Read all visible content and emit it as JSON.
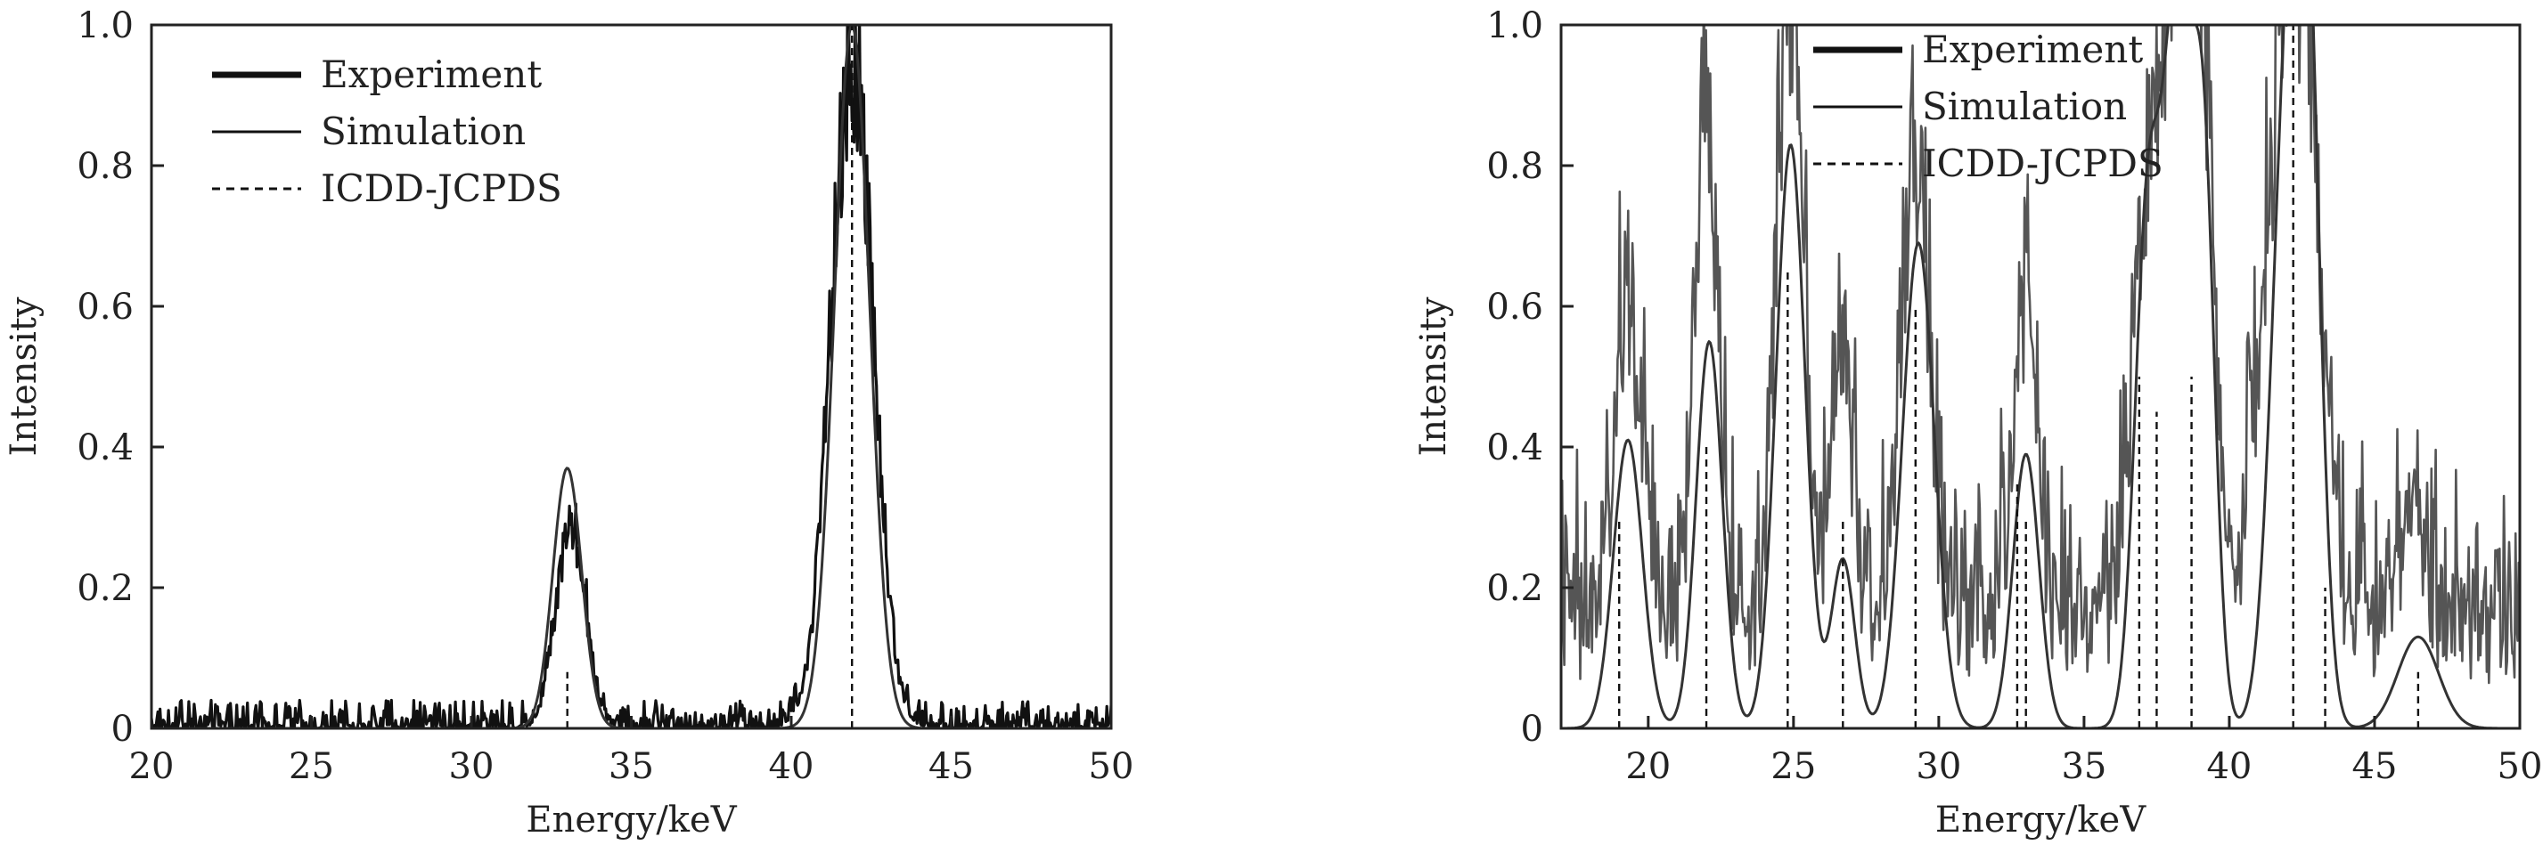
{
  "chart_data": [
    {
      "type": "line",
      "title": "",
      "xlabel": "Energy/keV",
      "ylabel": "Intensity",
      "xlim": [
        20,
        50
      ],
      "ylim": [
        0,
        1.0
      ],
      "x_ticks": [
        "20",
        "25",
        "30",
        "35",
        "40",
        "45",
        "50"
      ],
      "y_ticks": [
        "0",
        "0.2",
        "0.4",
        "0.6",
        "0.8",
        "1.0"
      ],
      "grid": false,
      "legend": {
        "position": "top-left",
        "entries": [
          "Experiment",
          "Simulation",
          "ICDD-JCPDS"
        ]
      },
      "series": [
        {
          "name": "Experiment",
          "style": "noisy",
          "color": "#111111",
          "peaks": [
            {
              "center": 33.1,
              "height": 0.3,
              "width": 0.45
            },
            {
              "center": 41.9,
              "height": 0.98,
              "width": 0.65
            }
          ],
          "noise": 0.04
        },
        {
          "name": "Simulation",
          "style": "smooth",
          "color": "#333333",
          "peaks": [
            {
              "center": 33.0,
              "height": 0.37,
              "width": 0.45
            },
            {
              "center": 41.9,
              "height": 1.0,
              "width": 0.55
            }
          ]
        },
        {
          "name": "ICDD-JCPDS",
          "style": "sticks",
          "color": "#111111",
          "x": [
            33.0,
            41.9
          ],
          "values": [
            0.08,
            1.0
          ]
        }
      ]
    },
    {
      "type": "line",
      "title": "",
      "xlabel": "Energy/keV",
      "ylabel": "Intensity",
      "xlim": [
        17,
        50
      ],
      "ylim": [
        0,
        1.0
      ],
      "x_ticks": [
        "20",
        "25",
        "30",
        "35",
        "40",
        "45",
        "50"
      ],
      "y_ticks": [
        "0",
        "0.2",
        "0.4",
        "0.6",
        "0.8",
        "1.0"
      ],
      "grid": false,
      "legend": {
        "position": "top-center",
        "entries": [
          "Experiment",
          "Simulation",
          "ICDD-JCPDS"
        ]
      },
      "series": [
        {
          "name": "Experiment",
          "style": "noisy",
          "color": "#555555",
          "peaks": [
            {
              "center": 19.3,
              "height": 0.45,
              "width": 0.45
            },
            {
              "center": 22.0,
              "height": 0.7,
              "width": 0.4
            },
            {
              "center": 24.9,
              "height": 0.95,
              "width": 0.45
            },
            {
              "center": 26.7,
              "height": 0.4,
              "width": 0.35
            },
            {
              "center": 29.2,
              "height": 0.7,
              "width": 0.45
            },
            {
              "center": 33.0,
              "height": 0.45,
              "width": 0.4
            },
            {
              "center": 37.2,
              "height": 0.65,
              "width": 0.5
            },
            {
              "center": 38.3,
              "height": 0.95,
              "width": 0.45
            },
            {
              "center": 39.1,
              "height": 0.75,
              "width": 0.4
            },
            {
              "center": 41.8,
              "height": 0.6,
              "width": 0.8
            },
            {
              "center": 42.6,
              "height": 0.55,
              "width": 0.6
            },
            {
              "center": 46.2,
              "height": 0.15,
              "width": 0.5
            }
          ],
          "noise": 0.22,
          "baseline": 0.15
        },
        {
          "name": "Simulation",
          "style": "smooth",
          "color": "#333333",
          "peaks": [
            {
              "center": 19.3,
              "height": 0.41,
              "width": 0.5
            },
            {
              "center": 22.1,
              "height": 0.55,
              "width": 0.45
            },
            {
              "center": 24.9,
              "height": 0.83,
              "width": 0.5
            },
            {
              "center": 26.7,
              "height": 0.24,
              "width": 0.4
            },
            {
              "center": 29.3,
              "height": 0.69,
              "width": 0.55
            },
            {
              "center": 33.0,
              "height": 0.39,
              "width": 0.45
            },
            {
              "center": 37.2,
              "height": 0.73,
              "width": 0.45
            },
            {
              "center": 38.2,
              "height": 0.97,
              "width": 0.45
            },
            {
              "center": 39.1,
              "height": 0.8,
              "width": 0.4
            },
            {
              "center": 42.0,
              "height": 0.87,
              "width": 0.55
            },
            {
              "center": 42.7,
              "height": 0.84,
              "width": 0.45
            },
            {
              "center": 46.5,
              "height": 0.13,
              "width": 0.7
            }
          ]
        },
        {
          "name": "ICDD-JCPDS",
          "style": "sticks",
          "color": "#111111",
          "x": [
            19.0,
            22.0,
            24.8,
            26.7,
            29.2,
            32.7,
            33.0,
            36.9,
            37.5,
            38.7,
            42.2,
            43.3,
            46.5
          ],
          "values": [
            0.3,
            0.4,
            0.65,
            0.3,
            0.6,
            0.35,
            0.3,
            0.5,
            0.45,
            0.5,
            1.0,
            0.2,
            0.08
          ]
        }
      ]
    }
  ]
}
